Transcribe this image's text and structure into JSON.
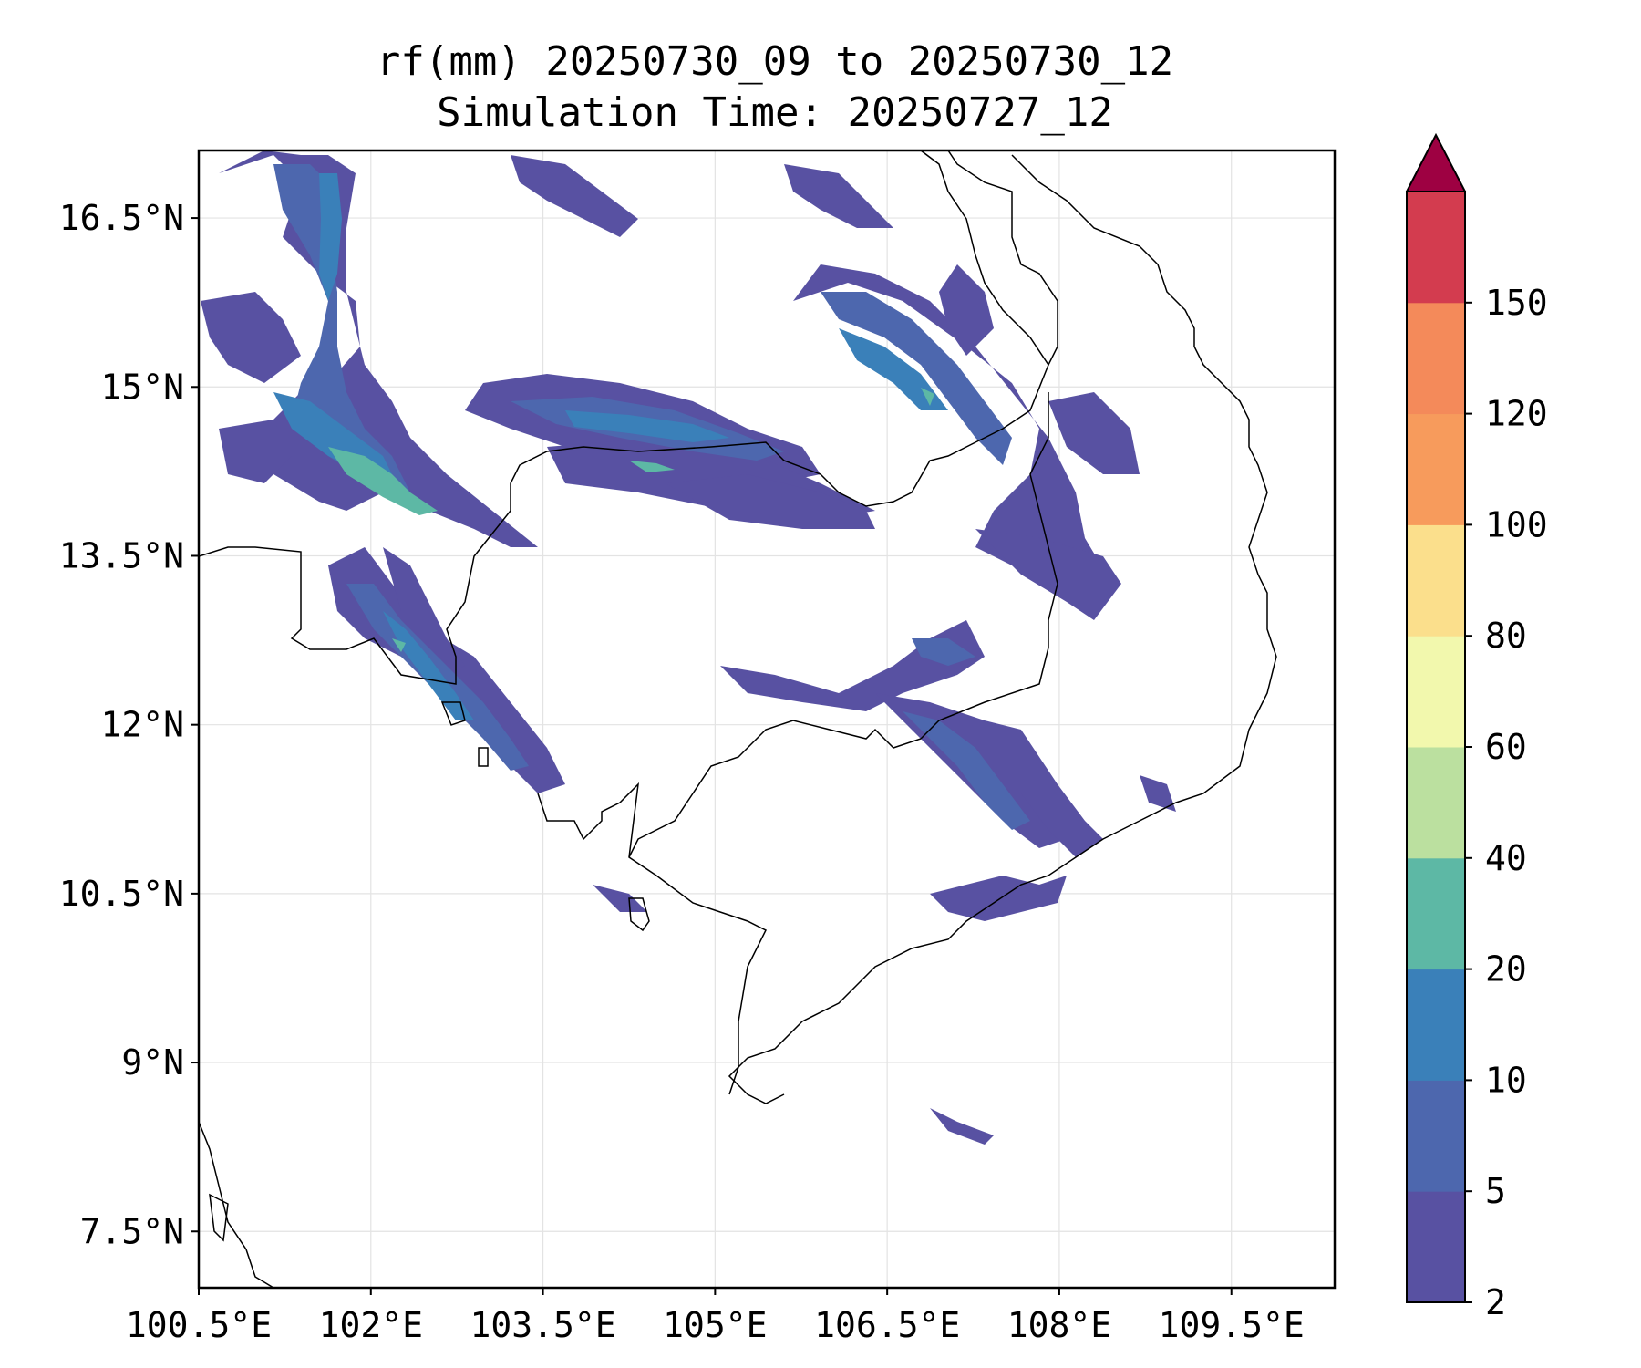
{
  "title": {
    "line1": "rf(mm) 20250730_09 to 20250730_12",
    "line2": "Simulation Time: 20250727_12"
  },
  "map": {
    "lon_range": [
      100.5,
      110.4
    ],
    "lat_range": [
      7.0,
      17.1
    ],
    "grid": true,
    "lon_ticks": [
      {
        "value": 100.5,
        "label": "100.5°E"
      },
      {
        "value": 102.0,
        "label": "102°E"
      },
      {
        "value": 103.5,
        "label": "103.5°E"
      },
      {
        "value": 105.0,
        "label": "105°E"
      },
      {
        "value": 106.5,
        "label": "106.5°E"
      },
      {
        "value": 108.0,
        "label": "108°E"
      },
      {
        "value": 109.5,
        "label": "109.5°E"
      }
    ],
    "lat_ticks": [
      {
        "value": 16.5,
        "label": "16.5°N"
      },
      {
        "value": 15.0,
        "label": "15°N"
      },
      {
        "value": 13.5,
        "label": "13.5°N"
      },
      {
        "value": 12.0,
        "label": "12°N"
      },
      {
        "value": 10.5,
        "label": "10.5°N"
      },
      {
        "value": 9.0,
        "label": "9°N"
      },
      {
        "value": 7.5,
        "label": "7.5°N"
      }
    ]
  },
  "colorbar": {
    "levels": [
      2,
      5,
      10,
      20,
      40,
      60,
      80,
      100,
      120,
      150
    ],
    "labels": [
      "2",
      "5",
      "10",
      "20",
      "40",
      "60",
      "80",
      "100",
      "120",
      "150"
    ],
    "colors": [
      "#5851a2",
      "#4d67ae",
      "#3a80b9",
      "#5db8a5",
      "#bbe09f",
      "#f2f8ad",
      "#fbdf8c",
      "#f79b5c",
      "#f48a5a",
      "#d33c4f"
    ],
    "extend_color": "#9e0142",
    "extend": "max"
  },
  "colors": {
    "level_2": "#5851a2",
    "level_5": "#4d67ae",
    "level_10": "#3a80b9",
    "level_20": "#5db8a5"
  }
}
